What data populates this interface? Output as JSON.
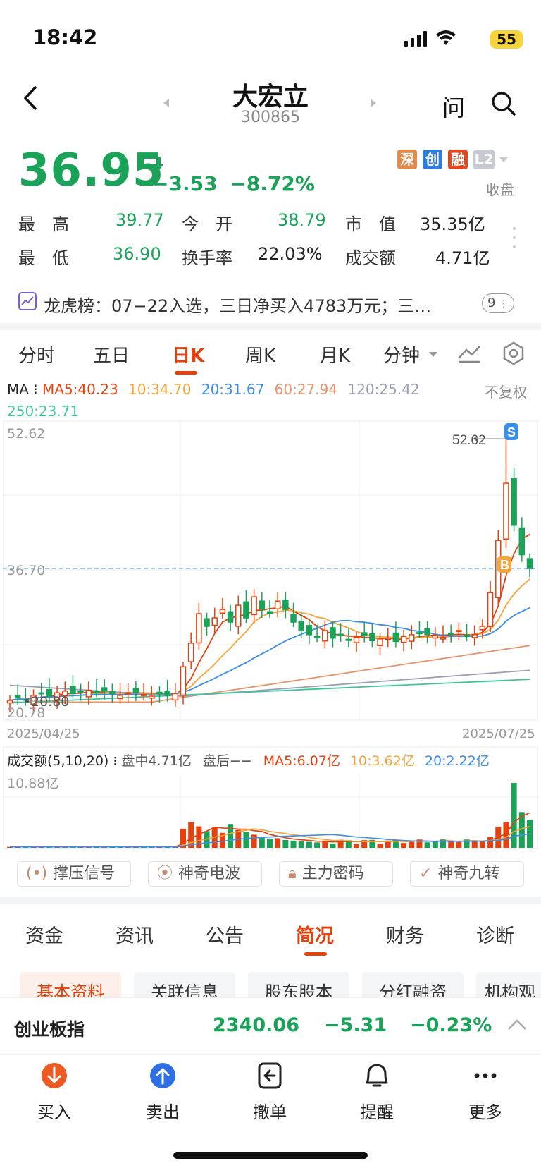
{
  "status": {
    "time": "18:42",
    "battery": "55"
  },
  "header": {
    "name": "大宏立",
    "code": "300865",
    "ask": "问"
  },
  "quote": {
    "price": "36.95",
    "change": "−3.53",
    "change_pct": "−8.72%",
    "badges": [
      "深",
      "创",
      "融",
      "L2"
    ],
    "market_state": "收盘",
    "stats": {
      "high_label": "最　高",
      "high": "39.77",
      "open_label": "今　开",
      "open": "38.79",
      "mktcap_label": "市　值",
      "mktcap": "35.35亿",
      "low_label": "最　低",
      "low": "36.90",
      "turnover_label": "换手率",
      "turnover": "22.03%",
      "amount_label": "成交额",
      "amount": "4.71亿"
    }
  },
  "dragon_tiger": {
    "text": "龙虎榜：07−22入选，三日净买入4783万元；三…",
    "count": "9"
  },
  "period_tabs": [
    "分时",
    "五日",
    "日K",
    "周K",
    "月K",
    "分钟"
  ],
  "active_period": "日K",
  "ma": {
    "label": "MA",
    "ma5": "MA5:40.23",
    "ma10": "10:34.70",
    "ma20": "20:31.67",
    "ma60": "60:27.94",
    "ma120": "120:25.42",
    "ma250": "250:23.71",
    "adjust": "不复权"
  },
  "chart_labels": {
    "top": "52.62",
    "high_marker": "52.62",
    "current_line": "36.70",
    "low_marker": "20.80",
    "bottom": "20.78",
    "date_start": "2025/04/25",
    "date_end": "2025/07/25",
    "sell_marker": "S",
    "buy_marker": "B"
  },
  "volume": {
    "title": "成交额(5,10,20)",
    "intraday": "盘中4.71亿",
    "after": "盘后−−",
    "ma5": "MA5:6.07亿",
    "ma10": "10:3.62亿",
    "ma20": "20:2.22亿",
    "top": "10.88亿"
  },
  "signals": [
    "撑压信号",
    "神奇电波",
    "主力密码",
    "神奇九转"
  ],
  "info_tabs": [
    "资金",
    "资讯",
    "公告",
    "简况",
    "财务",
    "诊断"
  ],
  "active_info_tab": "简况",
  "sub_tabs": [
    "基本资料",
    "关联信息",
    "股东股本",
    "分红融资",
    "机构观"
  ],
  "index_bar": {
    "name": "创业板指",
    "value": "2340.06",
    "change": "−5.31",
    "pct": "−0.23%"
  },
  "bottom_nav": [
    "买入",
    "卖出",
    "撤单",
    "提醒",
    "更多"
  ],
  "colors": {
    "up": "#e8400c",
    "down": "#1aa259",
    "ma5": "#e8400c",
    "ma10": "#f5a53a",
    "ma20": "#3b8eea",
    "ma60": "#e8926a",
    "ma120": "#9b9fb5",
    "ma250": "#3cc59b"
  },
  "chart_data": {
    "type": "candlestick",
    "x_range": [
      "2025/04/25",
      "2025/07/25"
    ],
    "ylim": [
      20.78,
      52.62
    ],
    "annotations": {
      "high": 52.62,
      "low": 20.8,
      "current": 36.7
    }
  }
}
